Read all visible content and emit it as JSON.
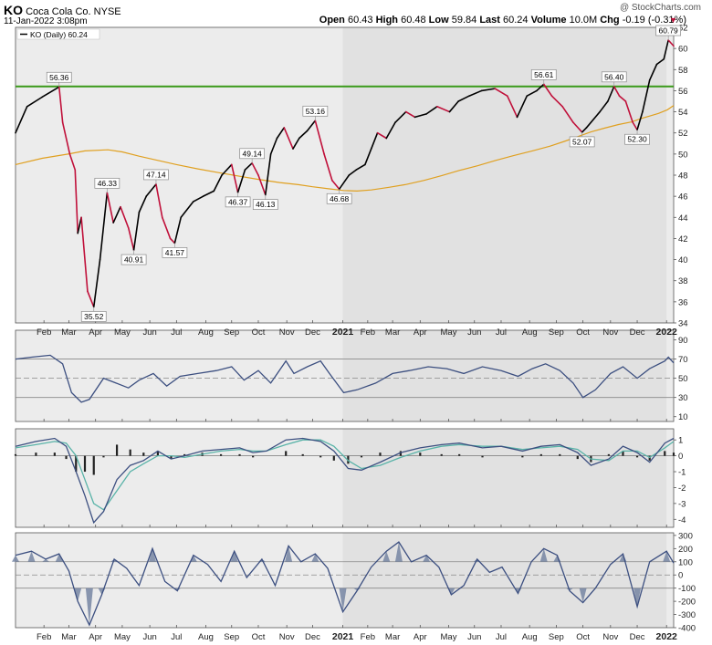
{
  "header": {
    "symbol": "KO",
    "company": "Coca Cola Co.",
    "exchange": "NYSE",
    "datetime": "11-Jan-2022 3:08pm",
    "open_label": "Open",
    "open": "60.43",
    "high_label": "High",
    "high": "60.48",
    "low_label": "Low",
    "low": "59.84",
    "last_label": "Last",
    "last": "60.24",
    "volume_label": "Volume",
    "volume": "10.0M",
    "chg_label": "Chg",
    "chg": "-0.19 (-0.31%)",
    "watermark": "@ StockCharts.com"
  },
  "colors": {
    "up": "#000000",
    "down": "#c0103a",
    "ma": "#e0a020",
    "resistance": "#3a9a1a",
    "indicator": "#3c4f80",
    "signal": "#59b3a8",
    "bg": "#ececec",
    "shade": "#e1e1e1"
  },
  "chart_data": [
    {
      "type": "line",
      "name": "price",
      "legend": "KO (Daily) 60.24",
      "x": [
        "2020-01-02",
        "2020-01-15",
        "2020-02-01",
        "2020-02-20",
        "2020-02-24",
        "2020-03-03",
        "2020-03-09",
        "2020-03-12",
        "2020-03-16",
        "2020-03-23",
        "2020-03-30",
        "2020-04-06",
        "2020-04-14",
        "2020-04-21",
        "2020-04-29",
        "2020-05-08",
        "2020-05-14",
        "2020-05-20",
        "2020-05-28",
        "2020-06-08",
        "2020-06-15",
        "2020-06-24",
        "2020-06-29",
        "2020-07-06",
        "2020-07-20",
        "2020-07-31",
        "2020-08-12",
        "2020-08-21",
        "2020-09-01",
        "2020-09-08",
        "2020-09-16",
        "2020-09-24",
        "2020-10-01",
        "2020-10-09",
        "2020-10-15",
        "2020-10-22",
        "2020-10-30",
        "2020-11-09",
        "2020-11-16",
        "2020-11-25",
        "2020-12-04",
        "2020-12-14",
        "2020-12-23",
        "2020-12-31",
        "2021-01-11",
        "2021-01-19",
        "2021-01-29",
        "2021-02-05",
        "2021-02-12",
        "2021-02-22",
        "2021-03-04",
        "2021-03-16",
        "2021-03-26",
        "2021-04-08",
        "2021-04-20",
        "2021-05-04",
        "2021-05-14",
        "2021-05-26",
        "2021-06-09",
        "2021-06-24",
        "2021-07-08",
        "2021-07-19",
        "2021-07-30",
        "2021-08-10",
        "2021-08-18",
        "2021-08-27",
        "2021-09-08",
        "2021-09-20",
        "2021-09-30",
        "2021-10-05",
        "2021-10-20",
        "2021-10-29",
        "2021-11-05",
        "2021-11-11",
        "2021-11-18",
        "2021-11-26",
        "2021-12-01",
        "2021-12-07",
        "2021-12-15",
        "2021-12-23",
        "2021-12-31",
        "2022-01-05",
        "2022-01-11"
      ],
      "y": [
        52.0,
        54.5,
        55.4,
        56.36,
        53.0,
        50.0,
        48.5,
        42.5,
        44.0,
        37.0,
        35.52,
        40.0,
        46.33,
        43.5,
        45.0,
        43.0,
        40.91,
        44.5,
        46.0,
        47.14,
        44.0,
        42.0,
        41.57,
        44.0,
        45.5,
        46.0,
        46.5,
        48.0,
        49.0,
        46.37,
        48.5,
        49.14,
        48.0,
        46.13,
        50.0,
        51.5,
        52.5,
        50.5,
        51.5,
        52.2,
        53.16,
        50.0,
        47.5,
        46.68,
        48.0,
        48.5,
        49.0,
        50.5,
        52.0,
        51.5,
        53.0,
        54.0,
        53.5,
        53.8,
        54.5,
        54.0,
        55.0,
        55.5,
        56.0,
        56.2,
        55.5,
        53.5,
        55.5,
        56.0,
        56.61,
        55.5,
        54.5,
        53.0,
        52.07,
        52.5,
        54.0,
        55.0,
        56.4,
        55.5,
        55.0,
        53.0,
        52.3,
        54.0,
        57.0,
        58.5,
        59.0,
        60.79,
        60.24
      ],
      "ma_200": [
        49.0,
        49.6,
        50.0,
        50.3,
        50.4,
        50.2,
        49.8,
        49.4,
        49.0,
        48.6,
        48.2,
        47.9,
        47.6,
        47.3,
        47.1,
        46.9,
        46.7,
        46.55,
        46.5,
        46.6,
        46.85,
        47.1,
        47.5,
        47.95,
        48.45,
        48.9,
        49.4,
        49.85,
        50.3,
        50.75,
        51.2,
        51.65,
        52.1,
        52.45,
        52.8,
        53.05,
        53.35,
        53.6,
        53.85,
        54.2,
        54.6
      ],
      "ma_200_x": [
        "2020-01-02",
        "2020-02-01",
        "2020-03-01",
        "2020-03-20",
        "2020-04-15",
        "2020-05-01",
        "2020-05-20",
        "2020-06-10",
        "2020-07-01",
        "2020-07-25",
        "2020-08-20",
        "2020-09-10",
        "2020-10-01",
        "2020-10-25",
        "2020-11-15",
        "2020-12-01",
        "2020-12-20",
        "2021-01-05",
        "2021-01-20",
        "2021-02-05",
        "2021-02-25",
        "2021-03-15",
        "2021-04-05",
        "2021-04-25",
        "2021-05-15",
        "2021-06-05",
        "2021-06-25",
        "2021-07-15",
        "2021-08-05",
        "2021-08-25",
        "2021-09-10",
        "2021-09-25",
        "2021-10-10",
        "2021-10-25",
        "2021-11-10",
        "2021-11-25",
        "2021-12-05",
        "2021-12-15",
        "2021-12-25",
        "2022-01-04",
        "2022-01-11"
      ],
      "resistance": 56.4,
      "ylim": [
        34,
        62
      ],
      "yticks": [
        34,
        36,
        38,
        40,
        42,
        44,
        46,
        48,
        50,
        52,
        54,
        56,
        58,
        60,
        62
      ],
      "xlim": [
        "2020-01-02",
        "2022-01-11"
      ],
      "xticks": [
        {
          "label": "Feb",
          "date": "2020-02-03"
        },
        {
          "label": "Mar",
          "date": "2020-03-02"
        },
        {
          "label": "Apr",
          "date": "2020-04-01"
        },
        {
          "label": "May",
          "date": "2020-05-01"
        },
        {
          "label": "Jun",
          "date": "2020-06-01"
        },
        {
          "label": "Jul",
          "date": "2020-07-01"
        },
        {
          "label": "Aug",
          "date": "2020-08-03"
        },
        {
          "label": "Sep",
          "date": "2020-09-01"
        },
        {
          "label": "Oct",
          "date": "2020-10-01"
        },
        {
          "label": "Nov",
          "date": "2020-11-02"
        },
        {
          "label": "Dec",
          "date": "2020-12-01"
        },
        {
          "label": "2021",
          "date": "2021-01-04",
          "bold": true
        },
        {
          "label": "Feb",
          "date": "2021-02-01"
        },
        {
          "label": "Mar",
          "date": "2021-03-01"
        },
        {
          "label": "Apr",
          "date": "2021-04-01"
        },
        {
          "label": "May",
          "date": "2021-05-03"
        },
        {
          "label": "Jun",
          "date": "2021-06-01"
        },
        {
          "label": "Jul",
          "date": "2021-07-01"
        },
        {
          "label": "Aug",
          "date": "2021-08-02"
        },
        {
          "label": "Sep",
          "date": "2021-09-01"
        },
        {
          "label": "Oct",
          "date": "2021-10-01"
        },
        {
          "label": "Nov",
          "date": "2021-11-01"
        },
        {
          "label": "Dec",
          "date": "2021-12-01"
        },
        {
          "label": "2022",
          "date": "2022-01-03",
          "bold": true
        }
      ],
      "annotations": [
        {
          "text": "56.36",
          "date": "2020-02-20",
          "value": 56.36,
          "pos": "above"
        },
        {
          "text": "35.52",
          "date": "2020-03-30",
          "value": 35.52,
          "pos": "below"
        },
        {
          "text": "46.33",
          "date": "2020-04-14",
          "value": 46.33,
          "pos": "above"
        },
        {
          "text": "40.91",
          "date": "2020-05-14",
          "value": 40.91,
          "pos": "below"
        },
        {
          "text": "47.14",
          "date": "2020-06-08",
          "value": 47.14,
          "pos": "above"
        },
        {
          "text": "41.57",
          "date": "2020-06-29",
          "value": 41.57,
          "pos": "below"
        },
        {
          "text": "46.37",
          "date": "2020-09-08",
          "value": 46.37,
          "pos": "below"
        },
        {
          "text": "49.14",
          "date": "2020-09-24",
          "value": 49.14,
          "pos": "above"
        },
        {
          "text": "46.13",
          "date": "2020-10-09",
          "value": 46.13,
          "pos": "below"
        },
        {
          "text": "53.16",
          "date": "2020-12-04",
          "value": 53.16,
          "pos": "above"
        },
        {
          "text": "46.68",
          "date": "2020-12-31",
          "value": 46.68,
          "pos": "below"
        },
        {
          "text": "56.61",
          "date": "2021-08-18",
          "value": 56.61,
          "pos": "above"
        },
        {
          "text": "52.07",
          "date": "2021-09-30",
          "value": 52.07,
          "pos": "below"
        },
        {
          "text": "56.40",
          "date": "2021-11-05",
          "value": 56.4,
          "pos": "above"
        },
        {
          "text": "52.30",
          "date": "2021-12-01",
          "value": 52.3,
          "pos": "below"
        },
        {
          "text": "60.79",
          "date": "2022-01-05",
          "value": 60.79,
          "pos": "above"
        }
      ]
    },
    {
      "type": "line",
      "name": "oscillator-1",
      "ylim": [
        5,
        100
      ],
      "yticks": [
        10,
        30,
        50,
        70,
        90
      ],
      "ref_lines": [
        30,
        50,
        70
      ],
      "x": [
        "2020-01-02",
        "2020-01-20",
        "2020-02-10",
        "2020-02-24",
        "2020-03-05",
        "2020-03-16",
        "2020-03-25",
        "2020-04-10",
        "2020-04-24",
        "2020-05-08",
        "2020-05-20",
        "2020-06-05",
        "2020-06-20",
        "2020-07-05",
        "2020-07-25",
        "2020-08-15",
        "2020-09-01",
        "2020-09-15",
        "2020-10-01",
        "2020-10-15",
        "2020-11-01",
        "2020-11-10",
        "2020-11-25",
        "2020-12-10",
        "2020-12-20",
        "2021-01-05",
        "2021-01-20",
        "2021-02-10",
        "2021-03-01",
        "2021-03-20",
        "2021-04-10",
        "2021-05-01",
        "2021-05-20",
        "2021-06-10",
        "2021-07-01",
        "2021-07-20",
        "2021-08-05",
        "2021-08-20",
        "2021-09-05",
        "2021-09-20",
        "2021-10-01",
        "2021-10-15",
        "2021-11-01",
        "2021-11-15",
        "2021-12-01",
        "2021-12-15",
        "2022-01-01",
        "2022-01-05",
        "2022-01-11"
      ],
      "y": [
        70,
        72,
        74,
        65,
        35,
        25,
        28,
        50,
        45,
        40,
        48,
        55,
        42,
        52,
        55,
        58,
        62,
        48,
        58,
        45,
        68,
        55,
        62,
        68,
        55,
        35,
        38,
        45,
        55,
        58,
        62,
        60,
        55,
        62,
        58,
        52,
        60,
        65,
        58,
        45,
        30,
        38,
        55,
        62,
        50,
        60,
        68,
        72,
        66
      ]
    },
    {
      "type": "line",
      "name": "oscillator-2",
      "ylim": [
        -4.5,
        1.7
      ],
      "yticks": [
        1,
        0,
        -1,
        -2,
        -3,
        -4
      ],
      "x": [
        "2020-01-02",
        "2020-01-25",
        "2020-02-15",
        "2020-02-28",
        "2020-03-10",
        "2020-03-20",
        "2020-03-30",
        "2020-04-10",
        "2020-04-25",
        "2020-05-10",
        "2020-05-25",
        "2020-06-10",
        "2020-06-25",
        "2020-07-10",
        "2020-07-30",
        "2020-08-20",
        "2020-09-10",
        "2020-09-25",
        "2020-10-10",
        "2020-11-01",
        "2020-11-20",
        "2020-12-10",
        "2020-12-25",
        "2021-01-10",
        "2021-01-25",
        "2021-02-15",
        "2021-03-10",
        "2021-04-01",
        "2021-04-25",
        "2021-05-15",
        "2021-06-10",
        "2021-07-01",
        "2021-07-25",
        "2021-08-15",
        "2021-09-05",
        "2021-09-25",
        "2021-10-10",
        "2021-10-30",
        "2021-11-15",
        "2021-12-01",
        "2021-12-15",
        "2022-01-01",
        "2022-01-11"
      ],
      "y": [
        0.6,
        0.9,
        1.1,
        0.6,
        -1.0,
        -2.5,
        -4.2,
        -3.5,
        -1.5,
        -0.6,
        -0.3,
        0.3,
        -0.2,
        0.0,
        0.3,
        0.4,
        0.5,
        0.2,
        0.3,
        1.0,
        1.1,
        0.9,
        0.3,
        -0.8,
        -0.9,
        -0.4,
        0.2,
        0.5,
        0.7,
        0.8,
        0.5,
        0.6,
        0.3,
        0.6,
        0.7,
        0.2,
        -0.6,
        -0.2,
        0.6,
        0.2,
        -0.4,
        0.8,
        1.1
      ],
      "signal": [
        0.5,
        0.7,
        0.9,
        0.8,
        0.0,
        -1.5,
        -3.0,
        -3.4,
        -2.2,
        -1.0,
        -0.5,
        0.0,
        0.0,
        -0.1,
        0.1,
        0.3,
        0.4,
        0.3,
        0.3,
        0.7,
        1.0,
        1.0,
        0.6,
        -0.3,
        -0.8,
        -0.6,
        -0.1,
        0.3,
        0.6,
        0.7,
        0.6,
        0.6,
        0.4,
        0.5,
        0.6,
        0.4,
        -0.2,
        -0.3,
        0.3,
        0.3,
        -0.1,
        0.5,
        0.9
      ]
    },
    {
      "type": "line",
      "name": "oscillator-3",
      "ylim": [
        -400,
        320
      ],
      "yticks": [
        300,
        200,
        100,
        0,
        -100,
        -200,
        -300,
        -400
      ],
      "ref_lines": [
        100,
        0,
        -100
      ],
      "x": [
        "2020-01-02",
        "2020-01-20",
        "2020-02-05",
        "2020-02-20",
        "2020-03-02",
        "2020-03-12",
        "2020-03-25",
        "2020-04-08",
        "2020-04-22",
        "2020-05-06",
        "2020-05-20",
        "2020-06-04",
        "2020-06-18",
        "2020-07-02",
        "2020-07-20",
        "2020-08-05",
        "2020-08-20",
        "2020-09-04",
        "2020-09-18",
        "2020-10-05",
        "2020-10-20",
        "2020-11-04",
        "2020-11-18",
        "2020-12-04",
        "2020-12-18",
        "2021-01-04",
        "2021-01-20",
        "2021-02-05",
        "2021-02-22",
        "2021-03-08",
        "2021-03-22",
        "2021-04-08",
        "2021-04-22",
        "2021-05-06",
        "2021-05-20",
        "2021-06-04",
        "2021-06-18",
        "2021-07-02",
        "2021-07-20",
        "2021-08-04",
        "2021-08-18",
        "2021-09-02",
        "2021-09-16",
        "2021-10-01",
        "2021-10-15",
        "2021-11-01",
        "2021-11-15",
        "2021-12-01",
        "2021-12-15",
        "2022-01-03",
        "2022-01-11"
      ],
      "y": [
        150,
        180,
        120,
        160,
        30,
        -200,
        -380,
        -150,
        120,
        50,
        -80,
        200,
        -50,
        -120,
        150,
        80,
        -50,
        180,
        -20,
        120,
        -80,
        220,
        100,
        160,
        50,
        -280,
        -120,
        60,
        180,
        250,
        100,
        150,
        60,
        -150,
        -80,
        120,
        20,
        60,
        -140,
        100,
        200,
        150,
        -120,
        -210,
        -100,
        80,
        160,
        -240,
        100,
        180,
        90
      ]
    }
  ]
}
